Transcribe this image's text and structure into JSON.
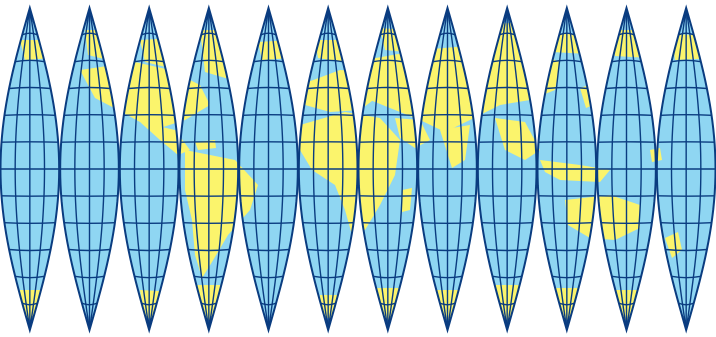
{
  "map": {
    "projection": "interrupted-sinusoidal-gores",
    "gore_count": 12,
    "colors": {
      "ocean": "#8fd6f2",
      "land": "#fbf46c",
      "graticule": "#0a3c80",
      "background": "#ffffff"
    },
    "graticule": {
      "parallels_interval_deg": 15,
      "meridians_per_gore": 3
    }
  }
}
